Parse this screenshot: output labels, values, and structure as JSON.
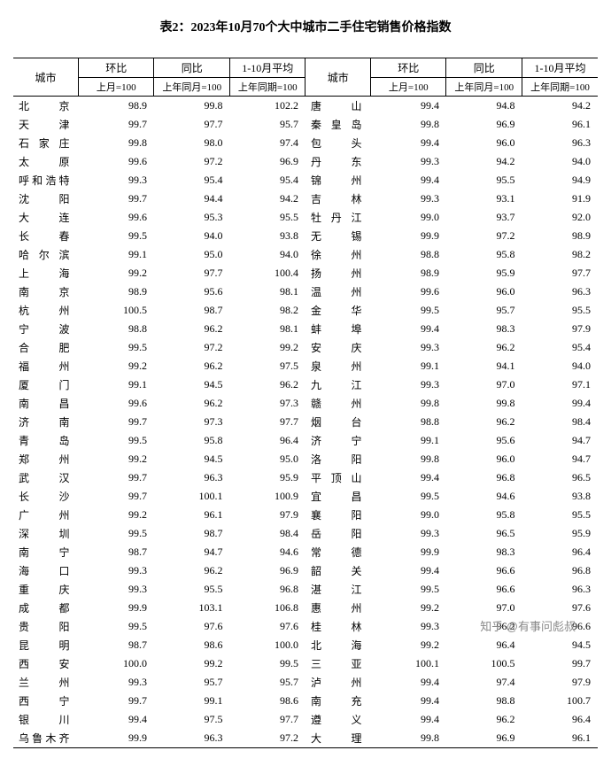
{
  "title": "表2：2023年10月70个大中城市二手住宅销售价格指数",
  "headers": {
    "city": "城市",
    "mom": "环比",
    "yoy": "同比",
    "avg": "1-10月平均",
    "mom_sub": "上月=100",
    "yoy_sub": "上年同月=100",
    "avg_sub": "上年同期=100"
  },
  "rows": [
    {
      "c1": "北　　京",
      "m1": "98.9",
      "y1": "99.8",
      "a1": "102.2",
      "c2": "唐　　山",
      "m2": "99.4",
      "y2": "94.8",
      "a2": "94.2"
    },
    {
      "c1": "天　　津",
      "m1": "99.7",
      "y1": "97.7",
      "a1": "95.7",
      "c2": "秦 皇 岛",
      "m2": "99.8",
      "y2": "96.9",
      "a2": "96.1"
    },
    {
      "c1": "石 家 庄",
      "m1": "99.8",
      "y1": "98.0",
      "a1": "97.4",
      "c2": "包　　头",
      "m2": "99.4",
      "y2": "96.0",
      "a2": "96.3"
    },
    {
      "c1": "太　　原",
      "m1": "99.6",
      "y1": "97.2",
      "a1": "96.9",
      "c2": "丹　　东",
      "m2": "99.3",
      "y2": "94.2",
      "a2": "94.0"
    },
    {
      "c1": "呼和浩特",
      "m1": "99.3",
      "y1": "95.4",
      "a1": "95.4",
      "c2": "锦　　州",
      "m2": "99.4",
      "y2": "95.5",
      "a2": "94.9"
    },
    {
      "c1": "沈　　阳",
      "m1": "99.7",
      "y1": "94.4",
      "a1": "94.2",
      "c2": "吉　　林",
      "m2": "99.3",
      "y2": "93.1",
      "a2": "91.9"
    },
    {
      "c1": "大　　连",
      "m1": "99.6",
      "y1": "95.3",
      "a1": "95.5",
      "c2": "牡 丹 江",
      "m2": "99.0",
      "y2": "93.7",
      "a2": "92.0"
    },
    {
      "c1": "长　　春",
      "m1": "99.5",
      "y1": "94.0",
      "a1": "93.8",
      "c2": "无　　锡",
      "m2": "99.9",
      "y2": "97.2",
      "a2": "98.9"
    },
    {
      "c1": "哈 尔 滨",
      "m1": "99.1",
      "y1": "95.0",
      "a1": "94.0",
      "c2": "徐　　州",
      "m2": "98.8",
      "y2": "95.8",
      "a2": "98.2"
    },
    {
      "c1": "上　　海",
      "m1": "99.2",
      "y1": "97.7",
      "a1": "100.4",
      "c2": "扬　　州",
      "m2": "98.9",
      "y2": "95.9",
      "a2": "97.7"
    },
    {
      "c1": "南　　京",
      "m1": "98.9",
      "y1": "95.6",
      "a1": "98.1",
      "c2": "温　　州",
      "m2": "99.6",
      "y2": "96.0",
      "a2": "96.3"
    },
    {
      "c1": "杭　　州",
      "m1": "100.5",
      "y1": "98.7",
      "a1": "98.2",
      "c2": "金　　华",
      "m2": "99.5",
      "y2": "95.7",
      "a2": "95.5"
    },
    {
      "c1": "宁　　波",
      "m1": "98.8",
      "y1": "96.2",
      "a1": "98.1",
      "c2": "蚌　　埠",
      "m2": "99.4",
      "y2": "98.3",
      "a2": "97.9"
    },
    {
      "c1": "合　　肥",
      "m1": "99.5",
      "y1": "97.2",
      "a1": "99.2",
      "c2": "安　　庆",
      "m2": "99.3",
      "y2": "96.2",
      "a2": "95.4"
    },
    {
      "c1": "福　　州",
      "m1": "99.2",
      "y1": "96.2",
      "a1": "97.5",
      "c2": "泉　　州",
      "m2": "99.1",
      "y2": "94.1",
      "a2": "94.0"
    },
    {
      "c1": "厦　　门",
      "m1": "99.1",
      "y1": "94.5",
      "a1": "96.2",
      "c2": "九　　江",
      "m2": "99.3",
      "y2": "97.0",
      "a2": "97.1"
    },
    {
      "c1": "南　　昌",
      "m1": "99.6",
      "y1": "96.2",
      "a1": "97.3",
      "c2": "赣　　州",
      "m2": "99.8",
      "y2": "99.8",
      "a2": "99.4"
    },
    {
      "c1": "济　　南",
      "m1": "99.7",
      "y1": "97.3",
      "a1": "97.7",
      "c2": "烟　　台",
      "m2": "98.8",
      "y2": "96.2",
      "a2": "98.4"
    },
    {
      "c1": "青　　岛",
      "m1": "99.5",
      "y1": "95.8",
      "a1": "96.4",
      "c2": "济　　宁",
      "m2": "99.1",
      "y2": "95.6",
      "a2": "94.7"
    },
    {
      "c1": "郑　　州",
      "m1": "99.2",
      "y1": "94.5",
      "a1": "95.0",
      "c2": "洛　　阳",
      "m2": "99.8",
      "y2": "96.0",
      "a2": "94.7"
    },
    {
      "c1": "武　　汉",
      "m1": "99.7",
      "y1": "96.3",
      "a1": "95.9",
      "c2": "平 顶 山",
      "m2": "99.4",
      "y2": "96.8",
      "a2": "96.5"
    },
    {
      "c1": "长　　沙",
      "m1": "99.7",
      "y1": "100.1",
      "a1": "100.9",
      "c2": "宜　　昌",
      "m2": "99.5",
      "y2": "94.6",
      "a2": "93.8"
    },
    {
      "c1": "广　　州",
      "m1": "99.2",
      "y1": "96.1",
      "a1": "97.9",
      "c2": "襄　　阳",
      "m2": "99.0",
      "y2": "95.8",
      "a2": "95.5"
    },
    {
      "c1": "深　　圳",
      "m1": "99.5",
      "y1": "98.7",
      "a1": "98.4",
      "c2": "岳　　阳",
      "m2": "99.3",
      "y2": "96.5",
      "a2": "95.9"
    },
    {
      "c1": "南　　宁",
      "m1": "98.7",
      "y1": "94.7",
      "a1": "94.6",
      "c2": "常　　德",
      "m2": "99.9",
      "y2": "98.3",
      "a2": "96.4"
    },
    {
      "c1": "海　　口",
      "m1": "99.3",
      "y1": "96.2",
      "a1": "96.9",
      "c2": "韶　　关",
      "m2": "99.4",
      "y2": "96.6",
      "a2": "96.8"
    },
    {
      "c1": "重　　庆",
      "m1": "99.3",
      "y1": "95.5",
      "a1": "96.8",
      "c2": "湛　　江",
      "m2": "99.5",
      "y2": "96.6",
      "a2": "96.3"
    },
    {
      "c1": "成　　都",
      "m1": "99.9",
      "y1": "103.1",
      "a1": "106.8",
      "c2": "惠　　州",
      "m2": "99.2",
      "y2": "97.0",
      "a2": "97.6"
    },
    {
      "c1": "贵　　阳",
      "m1": "99.5",
      "y1": "97.6",
      "a1": "97.6",
      "c2": "桂　　林",
      "m2": "99.3",
      "y2": "96.2",
      "a2": "96.6"
    },
    {
      "c1": "昆　　明",
      "m1": "98.7",
      "y1": "98.6",
      "a1": "100.0",
      "c2": "北　　海",
      "m2": "99.2",
      "y2": "96.4",
      "a2": "94.5"
    },
    {
      "c1": "西　　安",
      "m1": "100.0",
      "y1": "99.2",
      "a1": "99.5",
      "c2": "三　　亚",
      "m2": "100.1",
      "y2": "100.5",
      "a2": "99.7"
    },
    {
      "c1": "兰　　州",
      "m1": "99.3",
      "y1": "95.7",
      "a1": "95.7",
      "c2": "泸　　州",
      "m2": "99.4",
      "y2": "97.4",
      "a2": "97.9"
    },
    {
      "c1": "西　　宁",
      "m1": "99.7",
      "y1": "99.1",
      "a1": "98.6",
      "c2": "南　　充",
      "m2": "99.4",
      "y2": "98.8",
      "a2": "100.7"
    },
    {
      "c1": "银　　川",
      "m1": "99.4",
      "y1": "97.5",
      "a1": "97.7",
      "c2": "遵　　义",
      "m2": "99.4",
      "y2": "96.2",
      "a2": "96.4"
    },
    {
      "c1": "乌鲁木齐",
      "m1": "99.9",
      "y1": "96.3",
      "a1": "97.2",
      "c2": "大　　理",
      "m2": "99.8",
      "y2": "96.9",
      "a2": "96.1"
    }
  ],
  "watermark": "知乎 @有事问彪叔"
}
